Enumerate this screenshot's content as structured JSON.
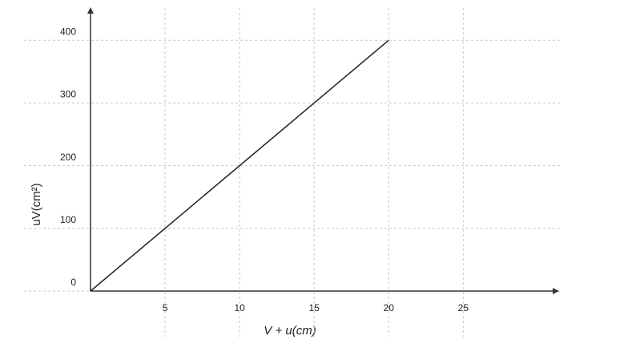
{
  "chart_data": {
    "type": "line",
    "x_label": "V + u(cm)",
    "y_label": "uV(cm²)",
    "x": [
      0,
      20
    ],
    "series": [
      {
        "name": "uV",
        "color": "#222222",
        "values": [
          0,
          400
        ]
      }
    ],
    "xlim": [
      0,
      31
    ],
    "ylim": [
      0,
      445
    ],
    "xticks": [
      5,
      10,
      15,
      20,
      25
    ],
    "yticks": [
      0,
      100,
      200,
      300,
      400
    ],
    "grid": true
  }
}
